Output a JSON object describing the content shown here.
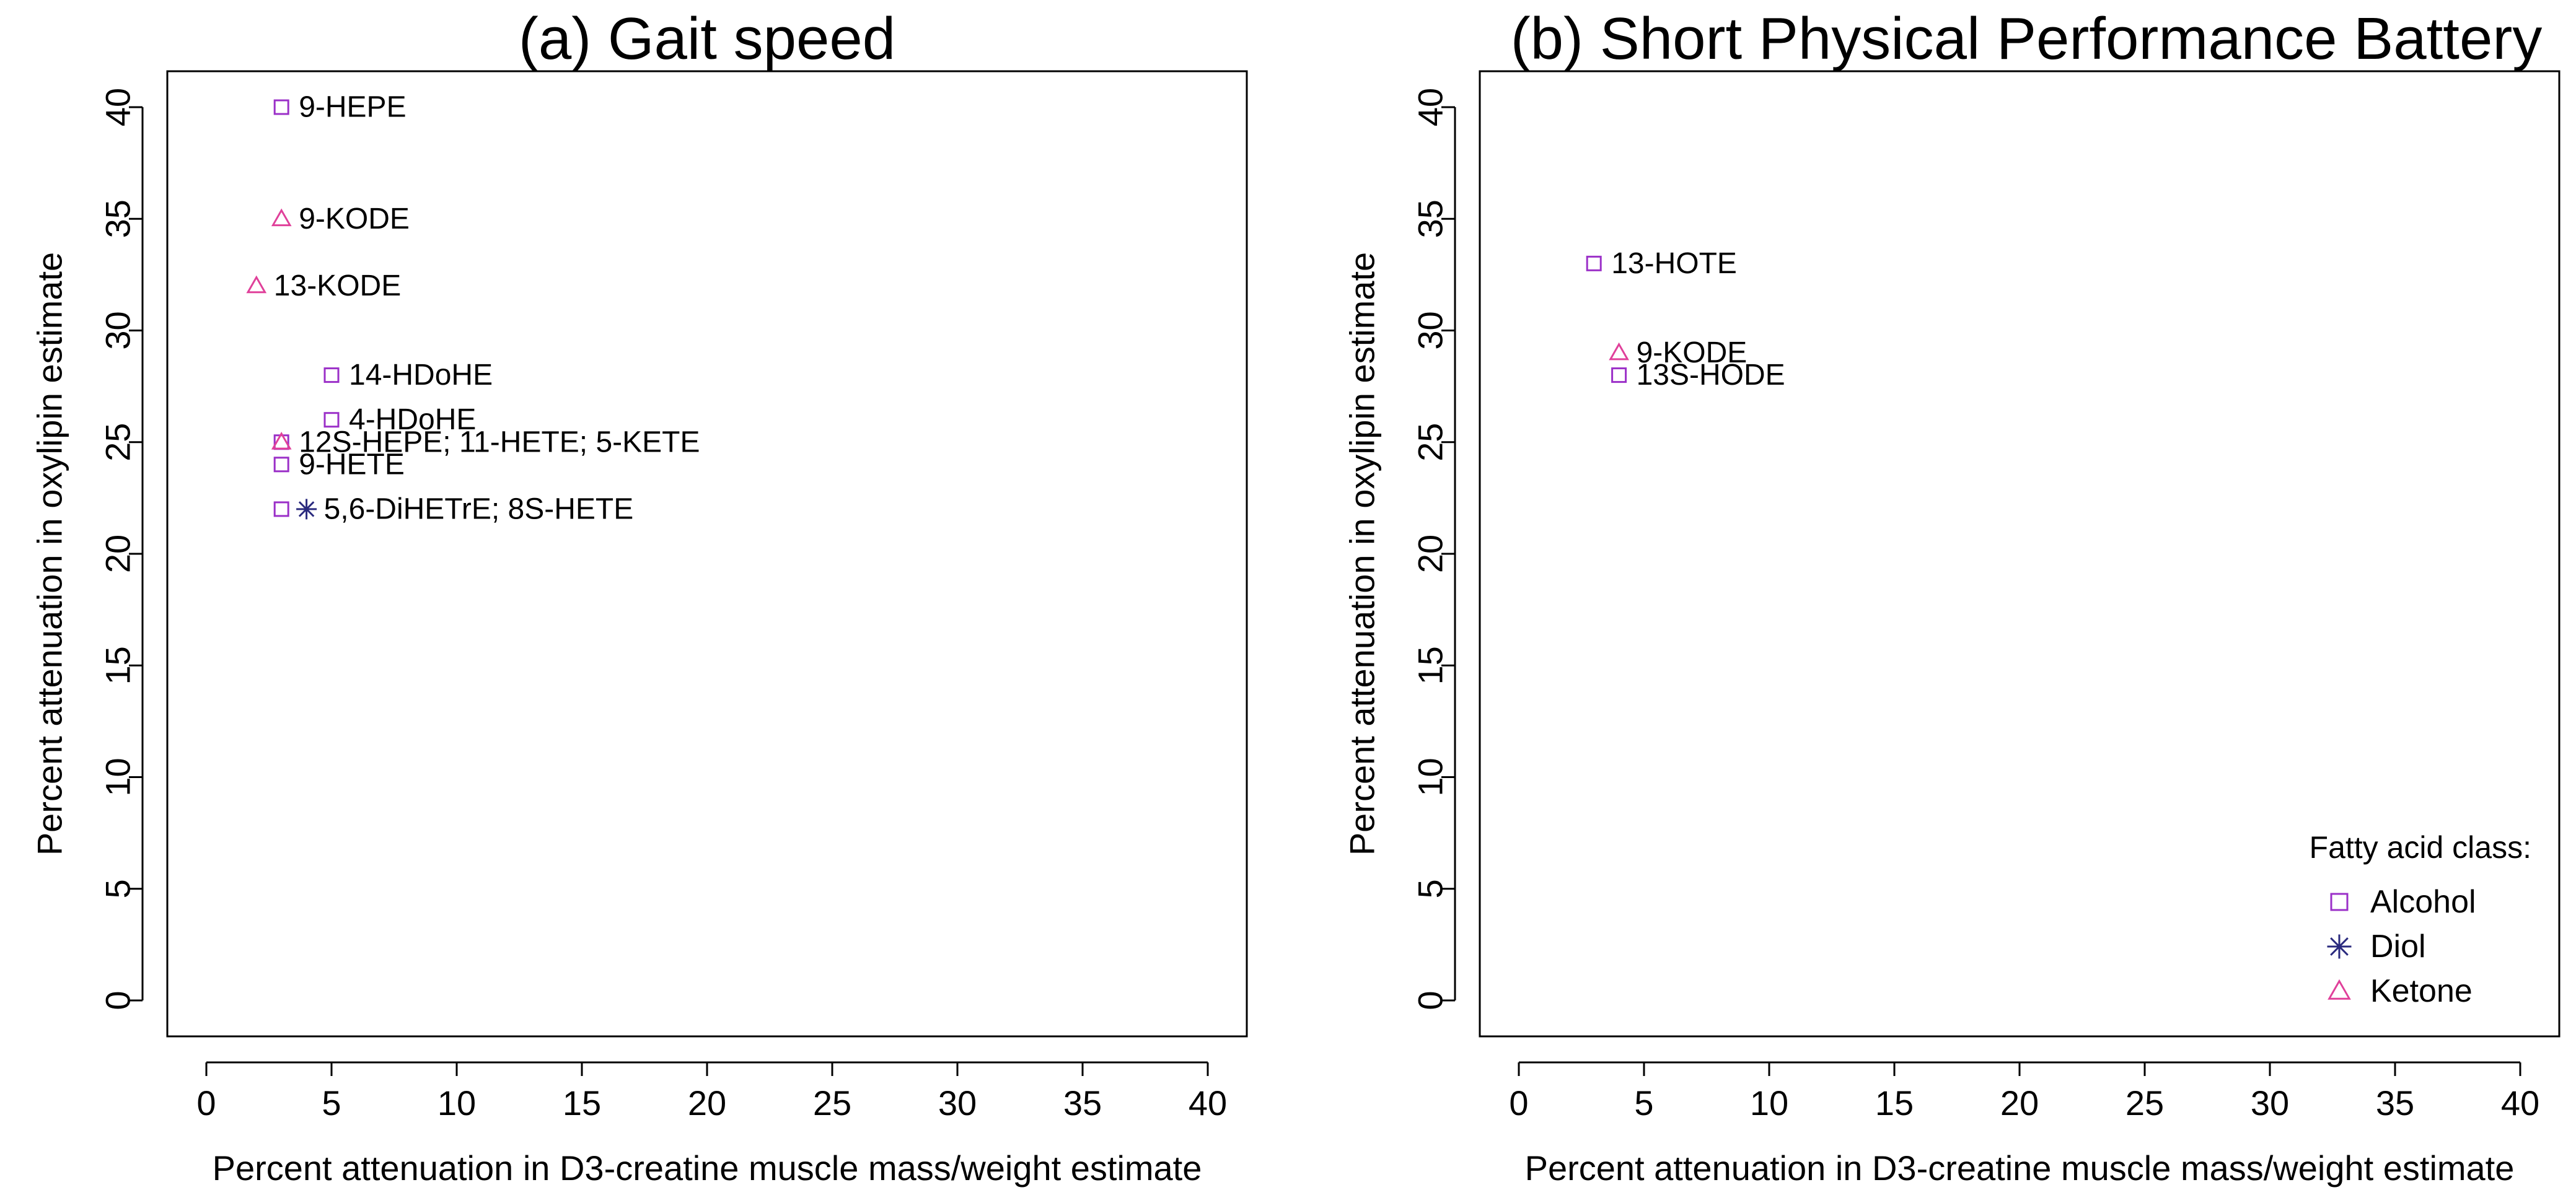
{
  "colors": {
    "Alcohol": "#9B30C8",
    "Diol": "#2A2A7E",
    "Ketone": "#E0409A"
  },
  "chart_data": [
    {
      "type": "scatter",
      "title": "(a) Gait speed",
      "xlabel": "Percent attenuation in D3-creatine muscle mass/weight estimate",
      "ylabel": "Percent attenuation in oxylipin estimate",
      "xlim": [
        0,
        40
      ],
      "ylim": [
        0,
        40
      ],
      "xticks": [
        0,
        5,
        10,
        15,
        20,
        25,
        30,
        35,
        40
      ],
      "yticks": [
        0,
        5,
        10,
        15,
        20,
        25,
        30,
        35,
        40
      ],
      "points": [
        {
          "x": 3,
          "y": 40,
          "class": "Alcohol",
          "label": "9-HEPE"
        },
        {
          "x": 3,
          "y": 35,
          "class": "Ketone",
          "label": "9-KODE"
        },
        {
          "x": 2,
          "y": 32,
          "class": "Ketone",
          "label": "13-KODE"
        },
        {
          "x": 5,
          "y": 28,
          "class": "Alcohol",
          "label": "14-HDoHE"
        },
        {
          "x": 5,
          "y": 26,
          "class": "Alcohol",
          "label": "4-HDoHE"
        },
        {
          "x": 3,
          "y": 25,
          "class": "Alcohol",
          "label": "12S-HEPE; 11-HETE; 5-KETE"
        },
        {
          "x": 3,
          "y": 25,
          "class": "Ketone",
          "label": ""
        },
        {
          "x": 3,
          "y": 24,
          "class": "Alcohol",
          "label": "9-HETE"
        },
        {
          "x": 3,
          "y": 22,
          "class": "Alcohol",
          "label": ""
        },
        {
          "x": 4,
          "y": 22,
          "class": "Diol",
          "label": "5,6-DiHETrE; 8S-HETE"
        }
      ]
    },
    {
      "type": "scatter",
      "title": "(b) Short Physical Performance Battery",
      "xlabel": "Percent attenuation in D3-creatine muscle mass/weight estimate",
      "ylabel": "Percent attenuation in oxylipin estimate",
      "xlim": [
        0,
        40
      ],
      "ylim": [
        0,
        40
      ],
      "xticks": [
        0,
        5,
        10,
        15,
        20,
        25,
        30,
        35,
        40
      ],
      "yticks": [
        0,
        5,
        10,
        15,
        20,
        25,
        30,
        35,
        40
      ],
      "points": [
        {
          "x": 3,
          "y": 33,
          "class": "Alcohol",
          "label": "13-HOTE"
        },
        {
          "x": 4,
          "y": 29,
          "class": "Ketone",
          "label": "9-KODE"
        },
        {
          "x": 4,
          "y": 28,
          "class": "Alcohol",
          "label": "13S-HODE"
        }
      ],
      "legend": {
        "title": "Fatty acid class:",
        "position": "bottom-right",
        "entries": [
          {
            "label": "Alcohol",
            "marker": "square"
          },
          {
            "label": "Diol",
            "marker": "asterisk"
          },
          {
            "label": "Ketone",
            "marker": "triangle"
          }
        ]
      }
    }
  ]
}
